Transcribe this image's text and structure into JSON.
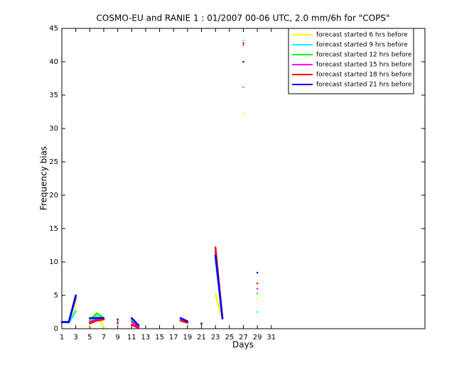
{
  "chart_data": {
    "type": "line",
    "title": "COSMO-EU and RANIE 1 : 01/2007 00-06 UTC, 2.0 mm/6h for \"COPS\"",
    "xlabel": "Days",
    "ylabel": "Frequency bias",
    "x": [
      1,
      2,
      3,
      4,
      5,
      6,
      7,
      8,
      9,
      10,
      11,
      12,
      13,
      14,
      15,
      16,
      17,
      18,
      19,
      20,
      21,
      22,
      23,
      24,
      25,
      26,
      27,
      28,
      29,
      30,
      31
    ],
    "xlim": [
      1,
      53
    ],
    "xticks": [
      1,
      3,
      5,
      7,
      9,
      11,
      13,
      15,
      17,
      19,
      21,
      23,
      25,
      27,
      29,
      31
    ],
    "ylim": [
      0,
      45
    ],
    "yticks": [
      0,
      5,
      10,
      15,
      20,
      25,
      30,
      35,
      40,
      45
    ],
    "grid": false,
    "legend_position": "upper-right",
    "series": [
      {
        "name": "forecast started 6 hrs before",
        "color": "#ffff00",
        "values": [
          1,
          0.9,
          3,
          null,
          0.5,
          2.0,
          0.3,
          null,
          0.8,
          null,
          1.0,
          0.2,
          null,
          null,
          null,
          null,
          null,
          1.2,
          0.9,
          null,
          0.7,
          null,
          5.2,
          1.5,
          null,
          null,
          32.2,
          null,
          4.5,
          null,
          null
        ]
      },
      {
        "name": "forecast started 9 hrs before",
        "color": "#00ffff",
        "values": [
          1,
          0.9,
          2.6,
          null,
          1.0,
          1.8,
          1.5,
          null,
          1.0,
          null,
          1.2,
          0.3,
          null,
          null,
          null,
          null,
          null,
          1.3,
          1.0,
          null,
          0.7,
          null,
          10.5,
          1.6,
          null,
          null,
          43.2,
          null,
          2.5,
          null,
          null
        ]
      },
      {
        "name": "forecast started 12 hrs before",
        "color": "#00ff00",
        "values": [
          1,
          1,
          4.5,
          null,
          1.3,
          2.3,
          1.6,
          null,
          1.2,
          null,
          1.3,
          0.4,
          null,
          null,
          null,
          null,
          null,
          1.4,
          1.0,
          null,
          0.8,
          null,
          11,
          1.6,
          null,
          null,
          36.2,
          null,
          5.3,
          null,
          null
        ]
      },
      {
        "name": "forecast started 15 hrs before",
        "color": "#ff00ff",
        "values": [
          1,
          1,
          4.8,
          null,
          1.0,
          1.4,
          1.4,
          null,
          1.0,
          null,
          1.0,
          0.3,
          null,
          null,
          null,
          null,
          null,
          1.3,
          1.0,
          null,
          0.7,
          null,
          11.5,
          1.6,
          null,
          null,
          42.5,
          null,
          6.0,
          null,
          null
        ]
      },
      {
        "name": "forecast started 18 hrs before",
        "color": "#ff0000",
        "values": [
          1,
          1,
          4.8,
          null,
          0.8,
          1.2,
          1.4,
          null,
          0.8,
          null,
          0.6,
          0.1,
          null,
          null,
          null,
          null,
          null,
          1.2,
          0.9,
          null,
          0.7,
          null,
          12.2,
          1.6,
          null,
          null,
          42.8,
          null,
          6.8,
          null,
          null
        ]
      },
      {
        "name": "forecast started 21 hrs before",
        "color": "#0000ff",
        "values": [
          1,
          1,
          5.0,
          null,
          1.6,
          1.6,
          1.6,
          null,
          1.4,
          null,
          1.6,
          0.5,
          null,
          null,
          null,
          null,
          null,
          1.6,
          1.1,
          null,
          0.8,
          null,
          11,
          1.5,
          null,
          null,
          40,
          null,
          8.4,
          null,
          null
        ]
      }
    ]
  }
}
